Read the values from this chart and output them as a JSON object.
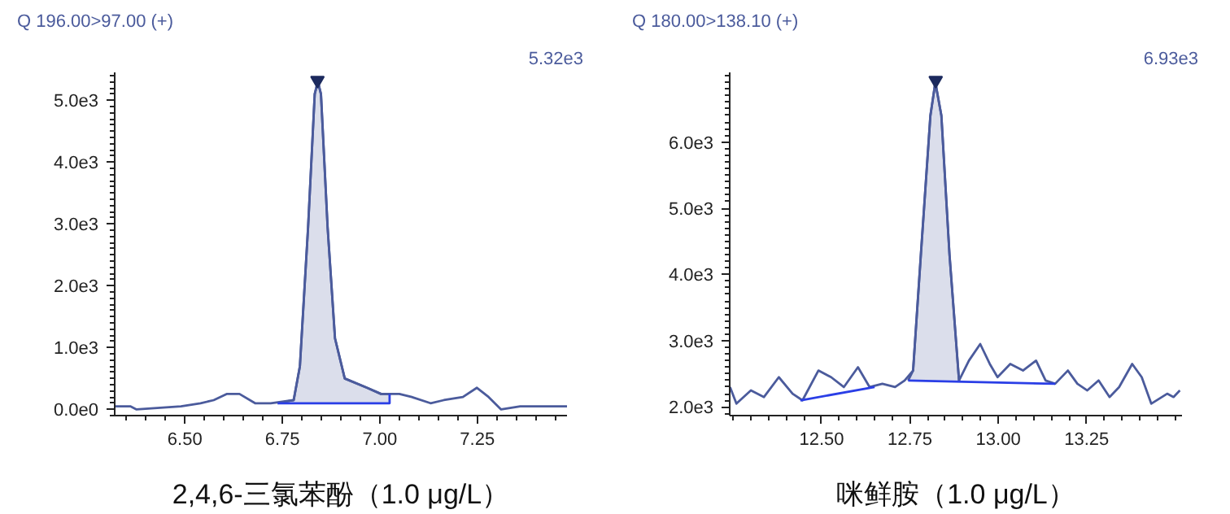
{
  "chart_data": [
    {
      "type": "line",
      "title": "Q 196.00>97.00 (+)",
      "annotations": [
        "5.32e3"
      ],
      "xlabel": "2,4,6-三氯苯酚（1.0 μg/L）",
      "xlim": [
        6.32,
        7.48
      ],
      "ylim": [
        -100,
        5450
      ],
      "xticks": [
        {
          "value": 6.5,
          "label": "6.50"
        },
        {
          "value": 6.75,
          "label": "6.75"
        },
        {
          "value": 7.0,
          "label": "7.00"
        },
        {
          "value": 7.25,
          "label": "7.25"
        }
      ],
      "yticks": [
        {
          "value": 0,
          "label": "0.0e0"
        },
        {
          "value": 1000,
          "label": "1.0e3"
        },
        {
          "value": 2000,
          "label": "2.0e3"
        },
        {
          "value": 3000,
          "label": "3.0e3"
        },
        {
          "value": 4000,
          "label": "4.0e3"
        },
        {
          "value": 5000,
          "label": "5.0e3"
        }
      ],
      "series": [
        {
          "color": "#4b5b9c",
          "x": [
            6.738,
            6.779,
            6.795,
            6.816,
            6.833,
            6.841,
            6.849,
            6.866,
            6.885,
            6.91,
            6.967,
            7.003,
            7.025
          ],
          "values": [
            100,
            150,
            700,
            2950,
            5100,
            5300,
            5100,
            2950,
            1150,
            500,
            350,
            250,
            250
          ],
          "lower": [
            100,
            100,
            100,
            100,
            100,
            100,
            100,
            100,
            100,
            100,
            100,
            100,
            100
          ],
          "upper": [
            100,
            150,
            700,
            2950,
            5100,
            5300,
            5100,
            2950,
            1150,
            500,
            350,
            250,
            250
          ]
        },
        {
          "color": "#4b5b9c",
          "x": [
            6.32,
            6.36,
            6.376,
            6.49,
            6.54,
            6.574,
            6.607,
            6.64,
            6.68,
            6.72,
            6.779,
            6.795,
            6.816,
            6.833,
            6.841,
            6.849,
            6.866,
            6.885,
            6.91,
            6.967,
            7.003,
            7.025,
            7.05,
            7.082,
            7.13,
            7.164,
            7.213,
            7.249,
            7.279,
            7.311,
            7.36,
            7.48
          ],
          "values": [
            50,
            50,
            0,
            50,
            100,
            150,
            250,
            250,
            100,
            100,
            150,
            700,
            2950,
            5100,
            5300,
            5100,
            2950,
            1150,
            500,
            350,
            250,
            250,
            250,
            200,
            100,
            150,
            200,
            350,
            200,
            0,
            50,
            50
          ]
        },
        {
          "color": "#2a3ee6",
          "x": [
            6.738,
            7.025,
            7.025
          ],
          "values": [
            100,
            100,
            250
          ]
        },
        {
          "type": "scatter",
          "color": "#1c2a5e",
          "marker": "triangle",
          "x": [
            6.84
          ],
          "values": [
            5320
          ]
        }
      ]
    },
    {
      "type": "line",
      "title": "Q 180.00>138.10 (+)",
      "annotations": [
        "6.93e3"
      ],
      "xlabel": "咪鲜胺（1.0 μg/L）",
      "xlim": [
        12.24,
        13.52
      ],
      "ylim": [
        1870,
        7050
      ],
      "xticks": [
        {
          "value": 12.5,
          "label": "12.50"
        },
        {
          "value": 12.75,
          "label": "12.75"
        },
        {
          "value": 13.0,
          "label": "13.00"
        },
        {
          "value": 13.25,
          "label": "13.25"
        }
      ],
      "yticks": [
        {
          "value": 2000,
          "label": "2.0e3"
        },
        {
          "value": 3000,
          "label": "3.0e3"
        },
        {
          "value": 4000,
          "label": "4.0e3"
        },
        {
          "value": 5000,
          "label": "5.0e3"
        },
        {
          "value": 6000,
          "label": "6.0e3"
        }
      ],
      "series": [
        {
          "color": "#4b5b9c",
          "x": [
            12.745,
            12.759,
            12.781,
            12.808,
            12.822,
            12.839,
            12.862,
            12.889
          ],
          "values": [
            2400,
            2550,
            4300,
            6400,
            6900,
            6400,
            4300,
            2400
          ],
          "lower": [
            2400,
            2400,
            2400,
            2400,
            2400,
            2400,
            2400,
            2400
          ],
          "upper": [
            2400,
            2550,
            4300,
            6400,
            6900,
            6400,
            4300,
            2400
          ]
        },
        {
          "color": "#4b5b9c",
          "x": [
            12.241,
            12.259,
            12.3,
            12.337,
            12.379,
            12.418,
            12.446,
            12.491,
            12.527,
            12.563,
            12.603,
            12.636,
            12.672,
            12.708,
            12.735,
            12.759,
            12.781,
            12.808,
            12.822,
            12.839,
            12.862,
            12.889,
            12.917,
            12.949,
            12.976,
            12.998,
            13.034,
            13.07,
            13.107,
            13.134,
            13.161,
            13.197,
            13.224,
            13.252,
            13.284,
            13.315,
            13.342,
            13.379,
            13.406,
            13.433,
            13.478,
            13.496,
            13.514
          ],
          "values": [
            2300,
            2050,
            2250,
            2150,
            2450,
            2200,
            2100,
            2550,
            2450,
            2300,
            2600,
            2300,
            2350,
            2300,
            2400,
            2550,
            4300,
            6400,
            6900,
            6400,
            4300,
            2400,
            2700,
            2950,
            2650,
            2450,
            2650,
            2550,
            2700,
            2400,
            2350,
            2550,
            2350,
            2250,
            2400,
            2150,
            2300,
            2650,
            2450,
            2050,
            2200,
            2150,
            2250
          ]
        },
        {
          "color": "#2a3ee6",
          "x": [
            12.44,
            12.65
          ],
          "values": [
            2100,
            2300
          ]
        },
        {
          "color": "#2a3ee6",
          "x": [
            12.745,
            13.161
          ],
          "values": [
            2400,
            2350
          ]
        },
        {
          "type": "scatter",
          "color": "#1c2a5e",
          "marker": "triangle",
          "x": [
            12.823
          ],
          "values": [
            6930
          ]
        }
      ]
    }
  ]
}
